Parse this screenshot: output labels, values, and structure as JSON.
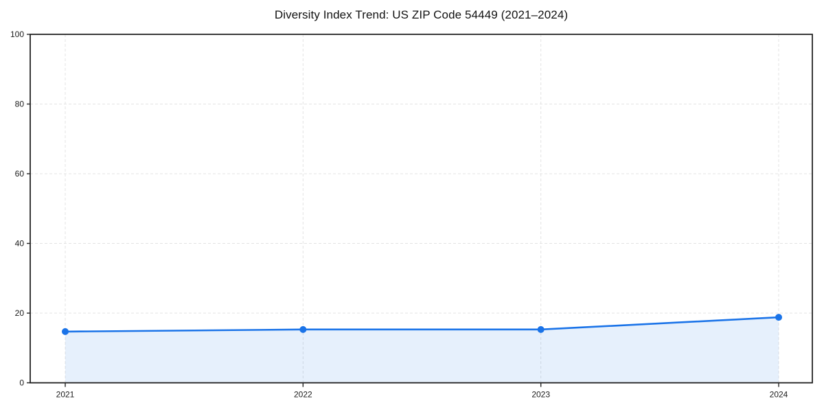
{
  "chart_data": {
    "type": "line",
    "title": "Diversity Index Trend: US ZIP Code 54449 (2021–2024)",
    "x": [
      "2021",
      "2022",
      "2023",
      "2024"
    ],
    "series": [
      {
        "name": "Diversity Index",
        "values": [
          14.7,
          15.3,
          15.3,
          18.8
        ]
      }
    ],
    "xlabel": "",
    "ylabel": "",
    "ylim": [
      0,
      100
    ],
    "yticks": [
      0,
      20,
      40,
      60,
      80,
      100
    ],
    "grid": "dashed",
    "legend_position": "none",
    "area_fill": true,
    "marker": "circle",
    "colors": {
      "line": "#1a73e8",
      "marker": "#1a73e8",
      "fill": "rgba(26,115,232,0.11)",
      "grid": "#e3e3e3",
      "axis": "#222222",
      "tick_text": "#1a1a1a",
      "background": "#ffffff"
    }
  }
}
